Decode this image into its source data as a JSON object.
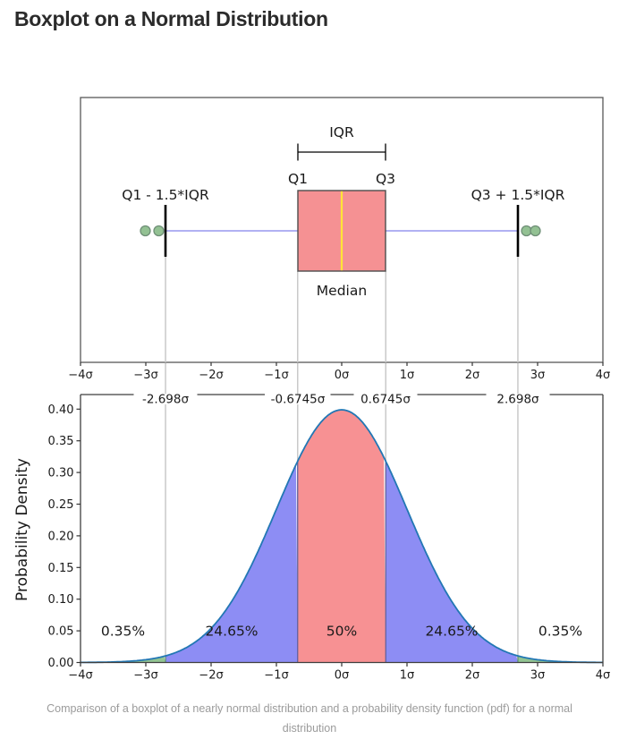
{
  "page": {
    "title": "Boxplot on a Normal Distribution",
    "caption": "Comparison of a boxplot of a nearly normal distribution and a probability density function (pdf) for a normal distribution"
  },
  "chart_data": {
    "type": "area",
    "subplots": [
      "boxplot",
      "normal_pdf"
    ],
    "x_axis": {
      "range": [
        -4,
        4
      ],
      "tick_values": [
        -4,
        -3,
        -2,
        -1,
        0,
        1,
        2,
        3,
        4
      ],
      "tick_labels": [
        "−4σ",
        "−3σ",
        "−2σ",
        "−1σ",
        "0σ",
        "1σ",
        "2σ",
        "3σ",
        "4σ"
      ]
    },
    "boxplot_panel": {
      "labels": {
        "iqr": "IQR",
        "q1": "Q1",
        "q3": "Q3",
        "lower_fence": "Q1 - 1.5*IQR",
        "upper_fence": "Q3 + 1.5*IQR",
        "median": "Median"
      },
      "stats_sigma": {
        "median": 0,
        "q1": -0.6745,
        "q3": 0.6745,
        "lower_whisker": -2.698,
        "upper_whisker": 2.698
      },
      "outliers_sigma": [
        -3.0,
        -2.8,
        2.83,
        2.97
      ],
      "colors": {
        "box_fill": "#f59193",
        "box_edge": "#4d4d4d",
        "median_line": "#ffe438",
        "whisker": "#9797ef",
        "cap": "#000000",
        "outlier_fill": "#93c193",
        "outlier_edge": "#6f8f77",
        "gridline": "#c9c9c9"
      }
    },
    "pdf_panel": {
      "ylabel": "Probability Density",
      "ylim": [
        0,
        0.42
      ],
      "y_tick_values": [
        0,
        0.05,
        0.1,
        0.15,
        0.2,
        0.25,
        0.3,
        0.35,
        0.4
      ],
      "y_tick_labels": [
        "0.00",
        "0.05",
        "0.10",
        "0.15",
        "0.20",
        "0.25",
        "0.30",
        "0.35",
        "0.40"
      ],
      "top_axis_labels": [
        {
          "value": -2.698,
          "label": "-2.698σ"
        },
        {
          "value": -0.6745,
          "label": "-0.6745σ"
        },
        {
          "value": 0.6745,
          "label": "0.6745σ"
        },
        {
          "value": 2.698,
          "label": "2.698σ"
        }
      ],
      "regions": [
        {
          "from": -4,
          "to": -2.698,
          "percent": "0.35%",
          "color": "#92c492"
        },
        {
          "from": -2.698,
          "to": -0.6745,
          "percent": "24.65%",
          "color": "#8d8df4"
        },
        {
          "from": -0.6745,
          "to": 0.6745,
          "percent": "50%",
          "color": "#f79193"
        },
        {
          "from": 0.6745,
          "to": 2.698,
          "percent": "24.65%",
          "color": "#8d8df4"
        },
        {
          "from": 2.698,
          "to": 4,
          "percent": "0.35%",
          "color": "#92c492"
        }
      ],
      "curve_color": "#2277b4",
      "gridline_color": "#c9c9c9"
    }
  }
}
